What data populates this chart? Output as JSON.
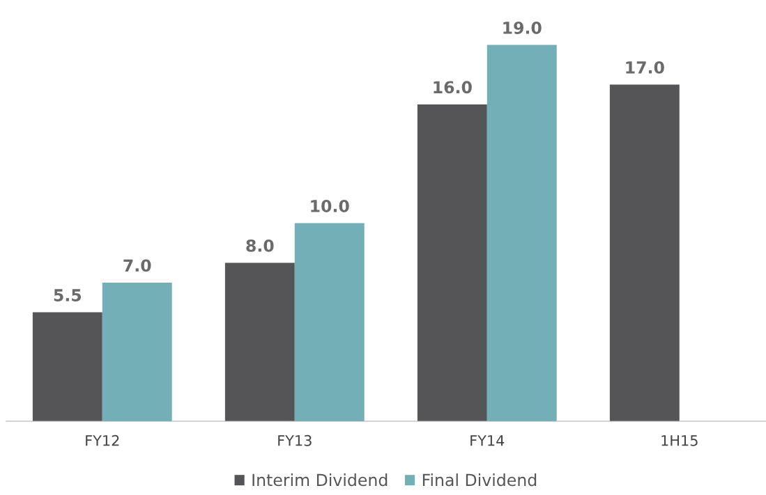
{
  "chart_data": {
    "type": "bar",
    "categories": [
      "FY12",
      "FY13",
      "FY14",
      "1H15"
    ],
    "series": [
      {
        "name": "Interim Dividend",
        "color": "#555557",
        "values": [
          5.5,
          8.0,
          16.0,
          17.0
        ],
        "value_labels": [
          "5.5",
          "8.0",
          "16.0",
          "17.0"
        ]
      },
      {
        "name": "Final Dividend",
        "color": "#72afb7",
        "values": [
          7.0,
          10.0,
          19.0,
          null
        ],
        "value_labels": [
          "7.0",
          "10.0",
          "19.0",
          null
        ]
      }
    ],
    "legend": "bottom",
    "grid": false
  }
}
